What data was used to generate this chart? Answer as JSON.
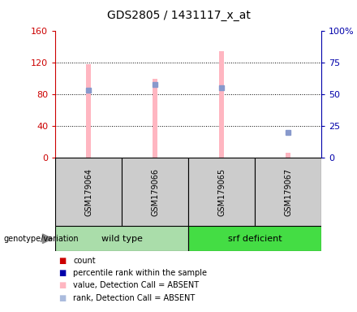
{
  "title": "GDS2805 / 1431117_x_at",
  "samples": [
    "GSM179064",
    "GSM179066",
    "GSM179065",
    "GSM179067"
  ],
  "pink_values": [
    118,
    100,
    135,
    6
  ],
  "blue_values_pct": [
    53,
    58,
    55,
    20
  ],
  "ylim_left": [
    0,
    160
  ],
  "ylim_right": [
    0,
    100
  ],
  "yticks_left": [
    0,
    40,
    80,
    120,
    160
  ],
  "ytick_labels_left": [
    "0",
    "40",
    "80",
    "120",
    "160"
  ],
  "yticks_right": [
    0,
    25,
    50,
    75,
    100
  ],
  "ytick_labels_right": [
    "0",
    "25",
    "50",
    "75",
    "100%"
  ],
  "left_axis_color": "#CC0000",
  "right_axis_color": "#0000AA",
  "pink_bar_color": "#FFB6C1",
  "blue_dot_color": "#8899CC",
  "bar_width": 0.08,
  "groups_info": [
    {
      "name": "wild type",
      "start": 0,
      "end": 1,
      "color": "#AADDAA"
    },
    {
      "name": "srf deficient",
      "start": 2,
      "end": 3,
      "color": "#44DD44"
    }
  ],
  "legend_colors": [
    "#CC0000",
    "#0000AA",
    "#FFB6C1",
    "#AABBDD"
  ],
  "legend_labels": [
    "count",
    "percentile rank within the sample",
    "value, Detection Call = ABSENT",
    "rank, Detection Call = ABSENT"
  ],
  "genotype_label": "genotype/variation"
}
